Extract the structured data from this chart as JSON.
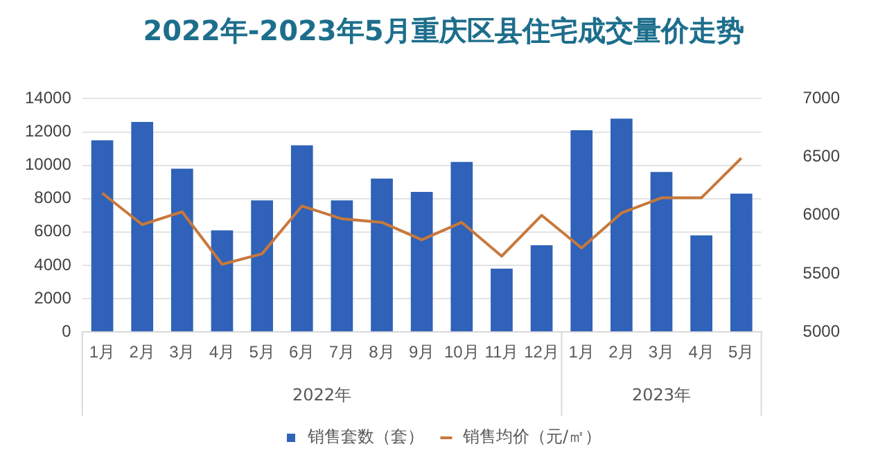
{
  "chart_data": {
    "type": "bar",
    "title": "2022年-2023年5月重庆区县住宅成交量价走势",
    "categories": [
      "1月",
      "2月",
      "3月",
      "4月",
      "5月",
      "6月",
      "7月",
      "8月",
      "9月",
      "10月",
      "11月",
      "12月",
      "1月",
      "2月",
      "3月",
      "4月",
      "5月"
    ],
    "series": [
      {
        "name": "销售套数（套）",
        "color": "#2f62b8",
        "values": [
          11500,
          12600,
          9800,
          6100,
          7900,
          11200,
          7900,
          9200,
          8400,
          10200,
          3800,
          5200,
          12100,
          12800,
          9600,
          5800,
          8300
        ]
      },
      {
        "name": "销售均价（元/㎡）",
        "type": "line",
        "axis": "y2",
        "color": "#c8783c",
        "values": [
          6190,
          5920,
          6030,
          5580,
          5670,
          6080,
          5970,
          5940,
          5790,
          5940,
          5650,
          6000,
          5720,
          6020,
          6150,
          6150,
          6490
        ]
      }
    ],
    "ylim": [
      0,
      14000
    ],
    "yticks": [
      0,
      2000,
      4000,
      6000,
      8000,
      10000,
      12000,
      14000
    ],
    "y2lim": [
      5000,
      7000
    ],
    "y2ticks": [
      5000,
      5500,
      6000,
      6500,
      7000
    ],
    "annotations": [
      "2022年",
      "2023年"
    ],
    "grid": "y",
    "legend": "bottom",
    "marker": "none",
    "line_style": "solid"
  }
}
